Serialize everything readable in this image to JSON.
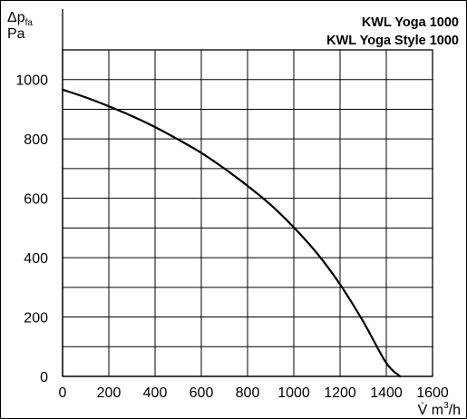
{
  "chart_data": {
    "type": "line",
    "title": "KWL Yoga 1000",
    "subtitle": "KWL Yoga Style 1000",
    "ylabel": {
      "symbol": "Δp",
      "subscript": "fa",
      "unit": "Pa"
    },
    "xlabel": {
      "symbol": "V̇",
      "unit_prefix": "m",
      "unit_sup": "3",
      "unit_suffix": "/h"
    },
    "xlim": [
      0,
      1600
    ],
    "ylim": [
      0,
      1100
    ],
    "x_ticks": [
      0,
      200,
      400,
      600,
      800,
      1000,
      1200,
      1400,
      1600
    ],
    "y_ticks": [
      0,
      200,
      400,
      600,
      800,
      1000
    ],
    "x_grid": [
      0,
      200,
      400,
      600,
      800,
      1000,
      1200,
      1400,
      1600
    ],
    "y_grid": [
      100,
      200,
      300,
      400,
      500,
      600,
      700,
      800,
      900,
      1000,
      1100
    ],
    "grid": true,
    "legend": "none",
    "series": [
      {
        "x": [
          0,
          100,
          200,
          300,
          400,
          500,
          600,
          700,
          800,
          900,
          1000,
          1100,
          1200,
          1300,
          1400,
          1460
        ],
        "y": [
          966,
          940,
          910,
          877,
          840,
          798,
          753,
          700,
          642,
          578,
          502,
          415,
          310,
          185,
          45,
          0
        ]
      }
    ]
  }
}
